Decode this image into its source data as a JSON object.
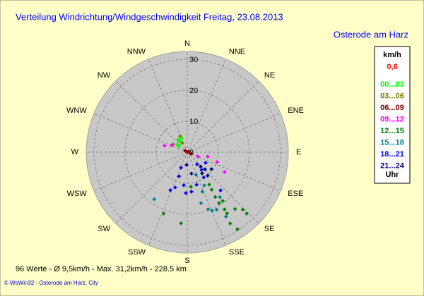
{
  "chart_data": {
    "type": "polar_scatter",
    "title": "Verteilung Windrichtung/Windgeschwindigkeit  Freitag, 23.08.2013",
    "subtitle": "Osterode am Harz",
    "directions": [
      "N",
      "NNE",
      "NE",
      "ENE",
      "E",
      "ESE",
      "SE",
      "SSE",
      "S",
      "SSW",
      "SW",
      "WSW",
      "W",
      "WNW",
      "NW",
      "NNW"
    ],
    "rlim": [
      0,
      32.5
    ],
    "rticks": [
      0,
      10,
      20,
      30
    ],
    "legend_title": "km/h",
    "calm": {
      "value": 0.6,
      "label": "0,6",
      "color": "#ff0000"
    },
    "legend_footer": "Uhr",
    "series": [
      {
        "name": "00...03",
        "color": "#00ff00",
        "direction": [
          324,
          326,
          308,
          338,
          304
        ],
        "speed": [
          5.0,
          4.1,
          4.0,
          4.9,
          3.3
        ]
      },
      {
        "name": "03...06",
        "color": "#808000",
        "direction": [
          336,
          299,
          332
        ],
        "speed": [
          5.7,
          5.2,
          3.4
        ]
      },
      {
        "name": "06...09",
        "color": "#800000",
        "direction": [
          304,
          63,
          112
        ],
        "speed": [
          0.8,
          0.5,
          1.2
        ]
      },
      {
        "name": "09...12",
        "color": "#ff00ff",
        "direction": [
          286,
          294,
          102,
          108,
          118,
          112
        ],
        "speed": [
          7.6,
          5.5,
          6.7,
          10.1,
          13.6,
          3.7
        ]
      },
      {
        "name": "12...15",
        "color": "#008000",
        "direction": [
          146,
          147,
          148,
          148,
          147,
          147,
          149,
          147,
          136,
          136,
          140,
          144,
          185,
          201,
          174
        ],
        "speed": [
          12.6,
          14.4,
          17.0,
          19.3,
          22.0,
          23.5,
          26.8,
          29.6,
          25.7,
          27.5,
          23.9,
          19.4,
          23.0,
          21.2,
          11.2
        ]
      },
      {
        "name": "15...18",
        "color": "#008080",
        "direction": [
          215,
          159,
          160,
          157,
          153,
          144,
          149,
          165,
          153,
          159
        ],
        "speed": [
          18.5,
          13.6,
          19.6,
          20.5,
          20.8,
          17.9,
          24.2,
          17.0,
          12.0,
          7.8
        ]
      },
      {
        "name": "18...21",
        "color": "#0000ff",
        "direction": [
          204,
          199,
          186,
          182,
          174,
          164,
          147,
          139,
          141,
          141,
          120,
          199,
          202
        ],
        "speed": [
          13.4,
          12.0,
          10.7,
          13.2,
          12.8,
          10.9,
          9.7,
          16.3,
          7.3,
          5.0,
          6.8,
          8.2,
          5.4
        ]
      },
      {
        "name": "21...24",
        "color": "#000080",
        "direction": [
          137,
          134,
          145,
          139,
          125,
          169,
          183
        ],
        "speed": [
          6.3,
          7.9,
          8.3,
          10.0,
          9.5,
          7.0,
          4.1
        ]
      }
    ],
    "footer": "96 Werte  -  Ø 9,5km/h  -  Max. 31,2km/h  -  228.5 km",
    "credit": "© WsWin32  -  Osterode am Harz, City"
  }
}
